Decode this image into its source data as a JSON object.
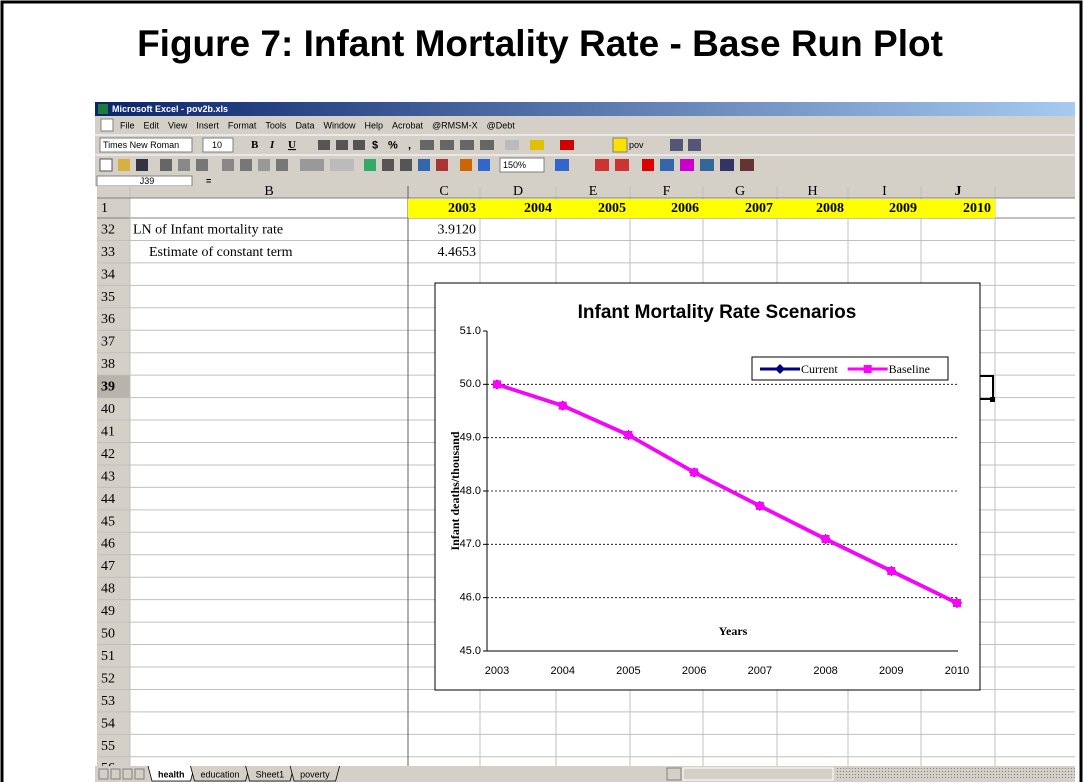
{
  "slide_title": "Figure 7: Infant Mortality Rate - Base Run Plot",
  "window_title": "Microsoft Excel - pov2b.xls",
  "menu": [
    "File",
    "Edit",
    "View",
    "Insert",
    "Format",
    "Tools",
    "Data",
    "Window",
    "Help",
    "Acrobat",
    "@RMSM-X",
    "@Debt"
  ],
  "toolbar": {
    "font": "Times New Roman",
    "size": 10,
    "bold": "B",
    "italic": "I",
    "underline": "U",
    "currency": "$",
    "percent": "%",
    "comma": ",",
    "custom": "pov",
    "zoom": "150%"
  },
  "name_box": "J39",
  "formula": "=",
  "columns": [
    "B",
    "C",
    "D",
    "E",
    "F",
    "G",
    "H",
    "I",
    "J"
  ],
  "rows": [
    1,
    32,
    33,
    34,
    35,
    36,
    37,
    38,
    39,
    40,
    41,
    42,
    43,
    44,
    45,
    46,
    47,
    48,
    49,
    50,
    51,
    52,
    53,
    54,
    55,
    56
  ],
  "cells": {
    "years": [
      2003,
      2004,
      2005,
      2006,
      2007,
      2008,
      2009,
      2010
    ],
    "row32": {
      "label": "LN of Infant mortality rate",
      "value": "3.9120"
    },
    "row33": {
      "label": "Estimate of constant term",
      "value": "4.4653"
    }
  },
  "sheet_tabs": [
    "health",
    "education",
    "Sheet1",
    "poverty"
  ],
  "chart_data": {
    "type": "line",
    "title": "Infant Mortality Rate Scenarios",
    "x_label": "Years",
    "y_label": "Infant deaths/thousand",
    "categories": [
      "2003",
      "2004",
      "2005",
      "2006",
      "2007",
      "2008",
      "2009",
      "2010"
    ],
    "series": [
      {
        "name": "Current",
        "color": "#000080",
        "marker": "diamond",
        "values": [
          50.0,
          49.6,
          49.05,
          48.35,
          47.72,
          47.1,
          46.5,
          45.9
        ]
      },
      {
        "name": "Baseline",
        "color": "#ff00ff",
        "marker": "square",
        "values": [
          50.0,
          49.6,
          49.05,
          48.35,
          47.72,
          47.1,
          46.5,
          45.9
        ]
      }
    ],
    "ylim": [
      45,
      51
    ],
    "yticks": [
      {
        "value": 45,
        "label": "45.0"
      },
      {
        "value": 46,
        "label": "46.0"
      },
      {
        "value": 47,
        "label": "47.0"
      },
      {
        "value": 48,
        "label": "48.0"
      },
      {
        "value": 49,
        "label": "49.0"
      },
      {
        "value": 50,
        "label": "50.0"
      },
      {
        "value": 51,
        "label": "51.0"
      }
    ],
    "grid": true,
    "legend": "top-right"
  }
}
